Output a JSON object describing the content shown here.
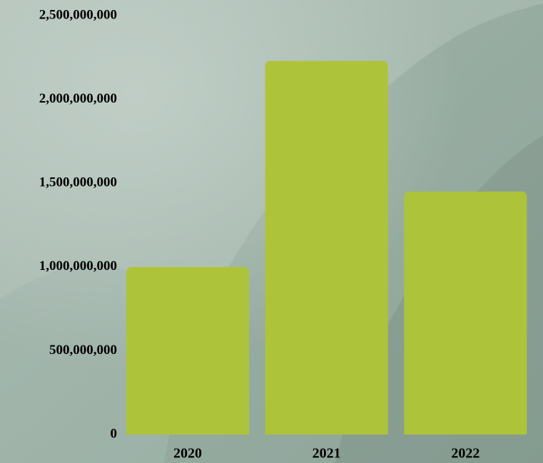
{
  "chart_data": {
    "type": "bar",
    "title": "",
    "xlabel": "",
    "ylabel": "",
    "categories": [
      "2020",
      "2021",
      "2022"
    ],
    "values": [
      1000000000,
      2230000000,
      1450000000
    ],
    "ylim": [
      0,
      2500000000
    ],
    "y_ticks": [
      0,
      500000000,
      1000000000,
      1500000000,
      2000000000,
      2500000000
    ],
    "y_tick_labels": [
      "0",
      "500,000,000",
      "1,000,000,000",
      "1,500,000,000",
      "2,000,000,000",
      "2,500,000,000"
    ],
    "bar_color": "#adc43a",
    "text_color": "#000000",
    "grid": false,
    "legend": "none"
  },
  "background": {
    "image": "misty green mountain landscape",
    "base_color": "#a9bcb2",
    "dark_color": "#6f857c"
  }
}
